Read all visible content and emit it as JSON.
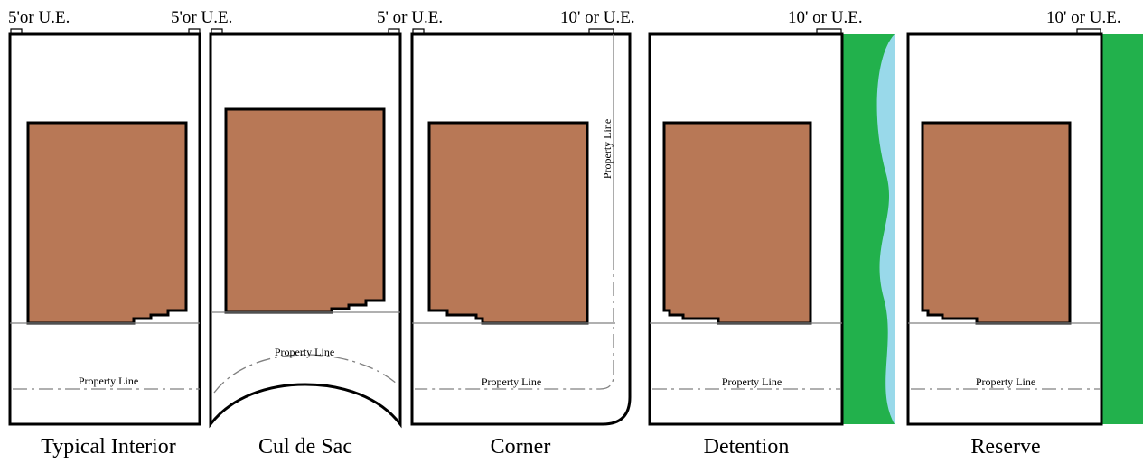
{
  "colors": {
    "house": "#b87856",
    "reserve_green": "#22b14c",
    "water": "#99d9ea",
    "property_line": "#808080"
  },
  "panels": [
    {
      "title": "Typical Interior",
      "left_label": "5'or U.E.",
      "right_label": "5'or U.E.",
      "property_line_label": "Property Line"
    },
    {
      "title": "Cul de Sac",
      "left_label": "",
      "right_label": "5' or U.E.",
      "property_line_label": "Property Line"
    },
    {
      "title": "Corner",
      "left_label": "",
      "right_label": "10' or U.E.",
      "property_line_label": "Property Line",
      "side_property_line_label": "Property Line"
    },
    {
      "title": "Detention",
      "left_label": "",
      "right_label": "10' or U.E.",
      "property_line_label": "Property Line"
    },
    {
      "title": "Reserve",
      "left_label": "",
      "right_label": "10' or U.E.",
      "property_line_label": "Property Line"
    }
  ]
}
